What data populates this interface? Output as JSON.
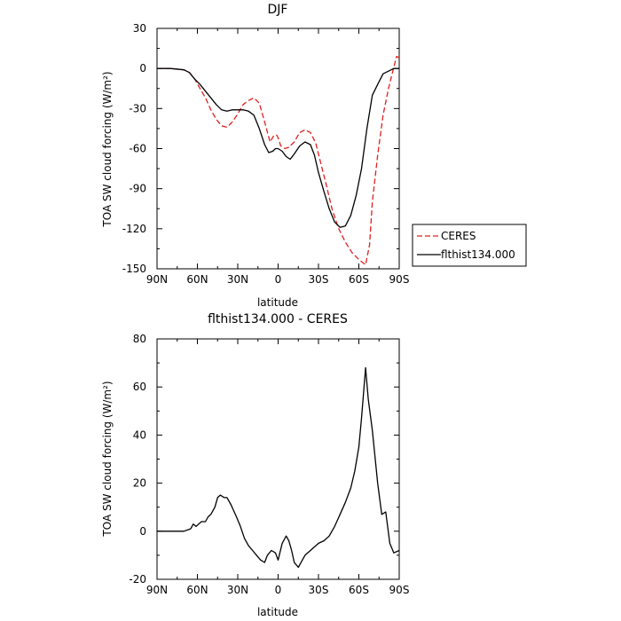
{
  "chart_data": [
    {
      "type": "line",
      "title": "DJF",
      "xlabel": "latitude",
      "ylabel": "TOA SW cloud forcing (W/m²)",
      "xlim": [
        90,
        -90
      ],
      "ylim": [
        -150,
        30
      ],
      "xticks": [
        90,
        60,
        30,
        0,
        -30,
        -60,
        -90
      ],
      "xtick_labels": [
        "90N",
        "60N",
        "30N",
        "0",
        "30S",
        "60S",
        "90S"
      ],
      "yticks": [
        -150,
        -120,
        -90,
        -60,
        -30,
        0,
        30
      ],
      "ytick_labels": [
        "-150",
        "-120",
        "-90",
        "-60",
        "-30",
        "0",
        "30"
      ],
      "grid": false,
      "legend_placement": "right",
      "series": [
        {
          "name": "CERES",
          "color": "#e02020",
          "dash": "dashed",
          "x": [
            90,
            80,
            70,
            66,
            62,
            58,
            54,
            50,
            46,
            42,
            38,
            34,
            30,
            26,
            22,
            18,
            14,
            10,
            6,
            3,
            1,
            0,
            -2,
            -5,
            -8,
            -12,
            -16,
            -20,
            -24,
            -28,
            -32,
            -36,
            -40,
            -45,
            -50,
            -55,
            -60,
            -65,
            -68,
            -70,
            -74,
            -78,
            -82,
            -85,
            -88,
            -90
          ],
          "y": [
            0,
            0,
            -1,
            -3,
            -8,
            -15,
            -22,
            -31,
            -38,
            -43,
            -44,
            -40,
            -34,
            -27,
            -24,
            -22,
            -26,
            -40,
            -55,
            -50,
            -50,
            -52,
            -58,
            -60,
            -59,
            -55,
            -48,
            -46,
            -48,
            -56,
            -72,
            -88,
            -105,
            -120,
            -130,
            -138,
            -143,
            -147,
            -132,
            -100,
            -65,
            -35,
            -15,
            -3,
            9,
            8
          ]
        },
        {
          "name": "flthist134.000",
          "color": "#000000",
          "dash": "solid",
          "x": [
            90,
            80,
            70,
            66,
            62,
            58,
            54,
            50,
            46,
            42,
            38,
            34,
            30,
            26,
            22,
            18,
            14,
            10,
            7,
            4,
            2,
            0,
            -3,
            -6,
            -9,
            -12,
            -16,
            -20,
            -24,
            -27,
            -30,
            -34,
            -38,
            -42,
            -46,
            -50,
            -54,
            -58,
            -62,
            -66,
            -70,
            -74,
            -78,
            -82,
            -86,
            -90
          ],
          "y": [
            0,
            0,
            -1,
            -3,
            -8,
            -12,
            -17,
            -22,
            -27,
            -31,
            -32,
            -31,
            -31,
            -31,
            -32,
            -35,
            -45,
            -57,
            -63,
            -62,
            -60,
            -60,
            -62,
            -66,
            -68,
            -64,
            -58,
            -55,
            -57,
            -65,
            -78,
            -92,
            -105,
            -115,
            -119,
            -118,
            -110,
            -95,
            -75,
            -45,
            -20,
            -12,
            -4,
            -2,
            0,
            0
          ]
        }
      ]
    },
    {
      "type": "line",
      "title": "flthist134.000 - CERES",
      "xlabel": "latitude",
      "ylabel": "TOA SW cloud forcing (W/m²)",
      "xlim": [
        90,
        -90
      ],
      "ylim": [
        -20,
        80
      ],
      "xticks": [
        90,
        60,
        30,
        0,
        -30,
        -60,
        -90
      ],
      "xtick_labels": [
        "90N",
        "60N",
        "30N",
        "0",
        "30S",
        "60S",
        "90S"
      ],
      "yticks": [
        -20,
        0,
        20,
        40,
        60,
        80
      ],
      "ytick_labels": [
        "-20",
        "0",
        "20",
        "40",
        "60",
        "80"
      ],
      "grid": false,
      "series": [
        {
          "color": "#000000",
          "dash": "solid",
          "x": [
            90,
            80,
            70,
            65,
            63,
            61,
            59,
            57,
            54,
            52,
            50,
            47,
            45,
            43,
            40,
            38,
            35,
            31,
            28,
            25,
            22,
            19,
            16,
            13,
            10,
            8,
            5,
            2,
            0,
            -3,
            -6,
            -8,
            -10,
            -12,
            -15,
            -18,
            -20,
            -24,
            -28,
            -30,
            -34,
            -38,
            -42,
            -46,
            -50,
            -54,
            -57,
            -60,
            -62,
            -65,
            -67,
            -70,
            -74,
            -77,
            -80,
            -83,
            -86,
            -90
          ],
          "y": [
            0,
            0,
            0,
            1,
            3,
            2,
            3,
            4,
            4,
            6,
            7,
            10,
            14,
            15,
            14,
            14,
            11,
            6,
            2,
            -3,
            -6,
            -8,
            -10,
            -12,
            -13,
            -10,
            -8,
            -9,
            -12,
            -5,
            -2,
            -4,
            -8,
            -13,
            -15,
            -12,
            -10,
            -8,
            -6,
            -5,
            -4,
            -2,
            2,
            7,
            12,
            18,
            25,
            35,
            47,
            68,
            55,
            42,
            20,
            7,
            8,
            -5,
            -9,
            -8
          ]
        }
      ]
    }
  ]
}
